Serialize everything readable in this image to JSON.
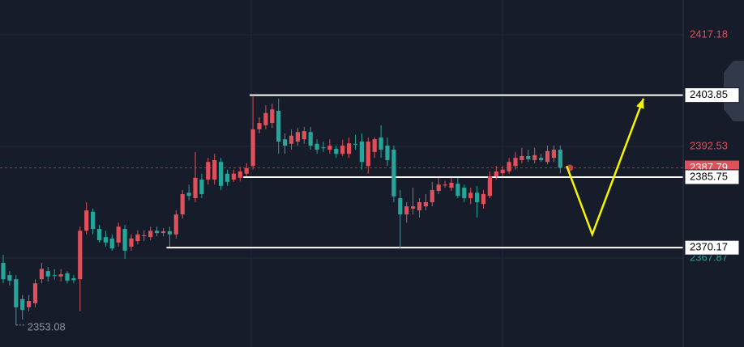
{
  "chart_data": {
    "type": "candlestick",
    "ylim": [
      2348.23,
      2424.86
    ],
    "yticks": [
      2417.18,
      2392.53,
      2367.87
    ],
    "ytick_colors": [
      "#e0505a",
      "#e0505a",
      "#26a69a"
    ],
    "grid": true,
    "up_color": "#e0505a",
    "down_color": "#26a69a",
    "open": [
      2366.8,
      2364.1,
      2363.2,
      2358.8,
      2357.0,
      2357.9,
      2363.2,
      2365.0,
      2364.1,
      2363.8,
      2364.5,
      2363.4,
      2363.2,
      2373.9,
      2378.1,
      2374.3,
      2372.5,
      2372.2,
      2371.3,
      2374.3,
      2370.4,
      2371.6,
      2372.7,
      2372.5,
      2373.9,
      2373.4,
      2373.8,
      2373.1,
      2377.5,
      2382.3,
      2381.1,
      2385.2,
      2385.2,
      2385.2,
      2389.1,
      2386.5,
      2385.2,
      2385.6,
      2386.5,
      2388.2,
      2396.3,
      2397.2,
      2397.7,
      2400.4,
      2394.1,
      2393.1,
      2393.6,
      2394.1,
      2395.7,
      2393.1,
      2392.3,
      2391.8,
      2392.0,
      2390.9,
      2390.9,
      2393.1,
      2393.6,
      2388.2,
      2391.3,
      2394.5,
      2392.7,
      2391.8,
      2381.1,
      2377.5,
      2378.8,
      2378.4,
      2379.3,
      2380.2,
      2382.7,
      2383.9,
      2383.4,
      2384.3,
      2383.4,
      2381.1,
      2382.3,
      2379.8,
      2381.6,
      2385.9,
      2386.6,
      2387.0,
      2388.2,
      2389.5,
      2390.4,
      2389.5,
      2390.0,
      2389.1,
      2390.0,
      2391.8
    ],
    "high": [
      2368.6,
      2365.0,
      2364.1,
      2359.7,
      2359.7,
      2363.2,
      2366.8,
      2365.9,
      2365.4,
      2365.4,
      2365.0,
      2364.1,
      2374.8,
      2380.2,
      2378.8,
      2375.2,
      2373.9,
      2373.1,
      2375.7,
      2375.2,
      2373.1,
      2374.0,
      2374.0,
      2374.8,
      2374.8,
      2374.5,
      2374.8,
      2378.4,
      2382.9,
      2384.1,
      2391.3,
      2386.5,
      2390.0,
      2390.9,
      2390.0,
      2387.4,
      2387.4,
      2388.0,
      2388.8,
      2403.8,
      2399.0,
      2401.6,
      2402.0,
      2403.1,
      2395.4,
      2396.3,
      2396.6,
      2396.8,
      2396.8,
      2394.1,
      2393.6,
      2394.1,
      2392.7,
      2394.0,
      2394.5,
      2395.1,
      2395.4,
      2394.5,
      2394.5,
      2397.2,
      2394.5,
      2392.7,
      2382.9,
      2380.2,
      2383.4,
      2381.1,
      2382.0,
      2384.7,
      2385.6,
      2384.9,
      2385.6,
      2385.6,
      2384.1,
      2383.4,
      2383.8,
      2382.9,
      2387.0,
      2388.2,
      2388.2,
      2390.0,
      2391.3,
      2392.2,
      2391.8,
      2392.2,
      2390.9,
      2392.7,
      2392.7,
      2392.7
    ],
    "low": [
      2362.3,
      2361.8,
      2353.08,
      2354.3,
      2356.1,
      2357.0,
      2362.3,
      2362.7,
      2363.1,
      2362.7,
      2362.3,
      2362.3,
      2356.1,
      2373.1,
      2373.1,
      2371.3,
      2370.4,
      2369.5,
      2370.4,
      2367.7,
      2369.5,
      2370.9,
      2371.6,
      2371.8,
      2372.7,
      2372.7,
      2370.4,
      2372.2,
      2376.6,
      2380.6,
      2380.2,
      2381.1,
      2384.1,
      2384.1,
      2382.9,
      2383.8,
      2384.7,
      2384.8,
      2385.9,
      2387.4,
      2395.4,
      2396.3,
      2396.6,
      2390.9,
      2390.9,
      2391.8,
      2392.7,
      2393.1,
      2391.8,
      2390.9,
      2391.3,
      2390.9,
      2390.0,
      2390.4,
      2390.0,
      2391.8,
      2387.4,
      2386.5,
      2390.0,
      2390.0,
      2388.2,
      2380.2,
      2370.0,
      2375.7,
      2377.5,
      2376.8,
      2378.4,
      2379.3,
      2382.0,
      2383.4,
      2382.7,
      2381.1,
      2380.2,
      2379.8,
      2376.8,
      2378.8,
      2381.1,
      2385.2,
      2385.9,
      2386.5,
      2387.4,
      2388.8,
      2389.1,
      2388.8,
      2389.1,
      2388.6,
      2389.1,
      2386.6
    ],
    "close": [
      2363.2,
      2362.9,
      2357.0,
      2356.4,
      2358.4,
      2362.3,
      2365.5,
      2363.8,
      2364.0,
      2364.3,
      2362.9,
      2363.0,
      2373.9,
      2378.4,
      2374.3,
      2371.8,
      2371.3,
      2370.0,
      2374.8,
      2369.5,
      2372.2,
      2373.1,
      2372.9,
      2373.9,
      2373.4,
      2373.8,
      2373.1,
      2377.5,
      2382.0,
      2381.6,
      2385.6,
      2382.0,
      2389.1,
      2389.5,
      2383.8,
      2384.7,
      2386.5,
      2387.0,
      2387.7,
      2396.3,
      2397.7,
      2399.9,
      2400.7,
      2393.6,
      2392.7,
      2394.9,
      2395.7,
      2395.9,
      2392.7,
      2391.8,
      2392.2,
      2392.7,
      2390.9,
      2392.7,
      2393.2,
      2392.9,
      2389.1,
      2393.6,
      2394.1,
      2391.8,
      2389.5,
      2381.5,
      2377.5,
      2379.3,
      2379.3,
      2380.2,
      2380.2,
      2382.9,
      2384.1,
      2384.1,
      2384.5,
      2381.6,
      2381.1,
      2382.3,
      2380.2,
      2382.0,
      2385.9,
      2387.0,
      2387.4,
      2389.1,
      2390.0,
      2390.4,
      2389.7,
      2390.6,
      2389.5,
      2391.5,
      2391.8,
      2387.79
    ],
    "levels": [
      {
        "value": 2403.85,
        "from": 39
      },
      {
        "value": 2385.75,
        "from": 38
      },
      {
        "value": 2370.17,
        "from": 26
      }
    ],
    "level_color": "#ffffff",
    "projection": {
      "color": "#f5f500",
      "points": [
        {
          "index": 88,
          "value": 2388.2
        },
        {
          "index": 92,
          "value": 2373.1
        },
        {
          "index": 100,
          "value": 2403.1
        }
      ]
    }
  }
}
